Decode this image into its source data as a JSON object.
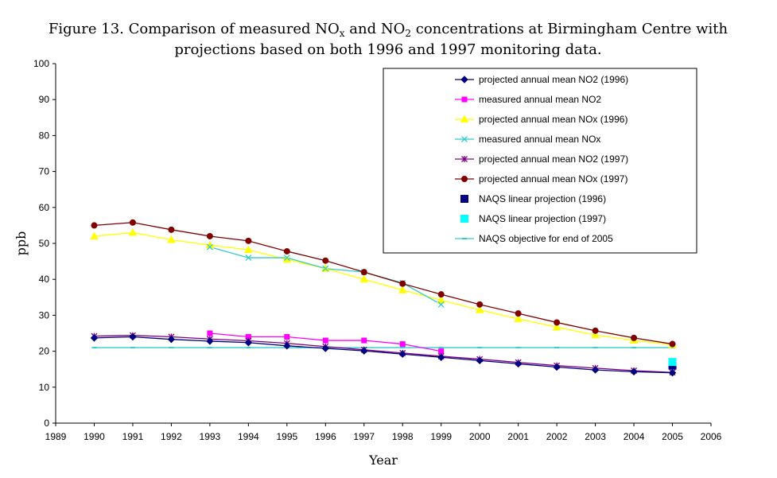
{
  "chart_data": {
    "type": "line",
    "title_line1_pre": "Figure 13. Comparison of measured NO",
    "title_line1_sub1": "x",
    "title_line1_mid": " and NO",
    "title_line1_sub2": "2",
    "title_line1_post": " concentrations at Birmingham Centre with",
    "title_line2": "projections based on both 1996 and 1997 monitoring data.",
    "xlabel": "Year",
    "ylabel": "ppb",
    "xlim": [
      1989,
      2006
    ],
    "ylim": [
      0,
      100
    ],
    "xticks": [
      1989,
      1990,
      1991,
      1992,
      1993,
      1994,
      1995,
      1996,
      1997,
      1998,
      1999,
      2000,
      2001,
      2002,
      2003,
      2004,
      2005,
      2006
    ],
    "yticks": [
      0,
      10,
      20,
      30,
      40,
      50,
      60,
      70,
      80,
      90,
      100
    ],
    "legend_position": "top-right",
    "series": [
      {
        "name": "projected annual mean NO2 (1996)",
        "color": "#000080",
        "marker": "diamond",
        "line": true,
        "x": [
          1990,
          1991,
          1992,
          1993,
          1994,
          1995,
          1996,
          1997,
          1998,
          1999,
          2000,
          2001,
          2002,
          2003,
          2004,
          2005
        ],
        "y": [
          23.7,
          24.0,
          23.3,
          22.8,
          22.4,
          21.5,
          20.8,
          20.1,
          19.2,
          18.3,
          17.4,
          16.5,
          15.6,
          14.8,
          14.3,
          14.0
        ]
      },
      {
        "name": "measured annual mean NO2",
        "color": "#ff00ff",
        "marker": "square",
        "line": true,
        "x": [
          1993,
          1994,
          1995,
          1996,
          1997,
          1998,
          1999
        ],
        "y": [
          25.0,
          24.0,
          24.0,
          23.0,
          23.0,
          22.0,
          20.0
        ]
      },
      {
        "name": "projected annual mean NOx (1996)",
        "color": "#ffff00",
        "marker": "triangle",
        "line": true,
        "x": [
          1990,
          1991,
          1992,
          1993,
          1994,
          1995,
          1996,
          1997,
          1998,
          1999,
          2000,
          2001,
          2002,
          2003,
          2004,
          2005
        ],
        "y": [
          52.0,
          53.0,
          51.0,
          49.5,
          48.2,
          45.5,
          43.0,
          40.0,
          37.0,
          34.2,
          31.5,
          29.0,
          26.7,
          24.5,
          23.0,
          21.8
        ]
      },
      {
        "name": "measured annual mean NOx",
        "color": "#33cccc",
        "marker": "x",
        "line": true,
        "x": [
          1993,
          1994,
          1995,
          1996,
          1997,
          1998,
          1999
        ],
        "y": [
          49.0,
          46.0,
          46.0,
          43.0,
          42.0,
          39.0,
          33.0
        ]
      },
      {
        "name": "projected annual mean NO2 (1997)",
        "color": "#800080",
        "marker": "star",
        "line": true,
        "x": [
          1990,
          1991,
          1992,
          1993,
          1994,
          1995,
          1996,
          1997,
          1998,
          1999,
          2000,
          2001,
          2002,
          2003,
          2004,
          2005
        ],
        "y": [
          24.2,
          24.4,
          24.0,
          23.4,
          22.9,
          22.2,
          21.3,
          20.4,
          19.5,
          18.6,
          17.8,
          16.9,
          16.0,
          15.3,
          14.6,
          14.1
        ]
      },
      {
        "name": "projected annual mean NOx (1997)",
        "color": "#800000",
        "marker": "circle",
        "line": true,
        "x": [
          1990,
          1991,
          1992,
          1993,
          1994,
          1995,
          1996,
          1997,
          1998,
          1999,
          2000,
          2001,
          2002,
          2003,
          2004,
          2005
        ],
        "y": [
          55.0,
          55.8,
          53.8,
          52.0,
          50.7,
          47.8,
          45.2,
          42.0,
          38.8,
          35.8,
          33.0,
          30.5,
          28.0,
          25.7,
          23.7,
          22.0
        ]
      },
      {
        "name": "NAQS linear projection (1996)",
        "color": "#000080",
        "marker": "bigsquare",
        "line": false,
        "x": [
          2005
        ],
        "y": [
          16.0
        ]
      },
      {
        "name": "NAQS linear projection (1997)",
        "color": "#00ffff",
        "marker": "bigsquare",
        "line": false,
        "x": [
          2005
        ],
        "y": [
          17.0
        ]
      },
      {
        "name": "NAQS objective for end of 2005",
        "color": "#33cccc",
        "marker": "dash",
        "line": true,
        "x": [
          1990,
          1991,
          1992,
          1993,
          1994,
          1995,
          1996,
          1997,
          1998,
          1999,
          2000,
          2001,
          2002,
          2003,
          2004,
          2005
        ],
        "y": [
          21,
          21,
          21,
          21,
          21,
          21,
          21,
          21,
          21,
          21,
          21,
          21,
          21,
          21,
          21,
          21
        ]
      }
    ]
  }
}
